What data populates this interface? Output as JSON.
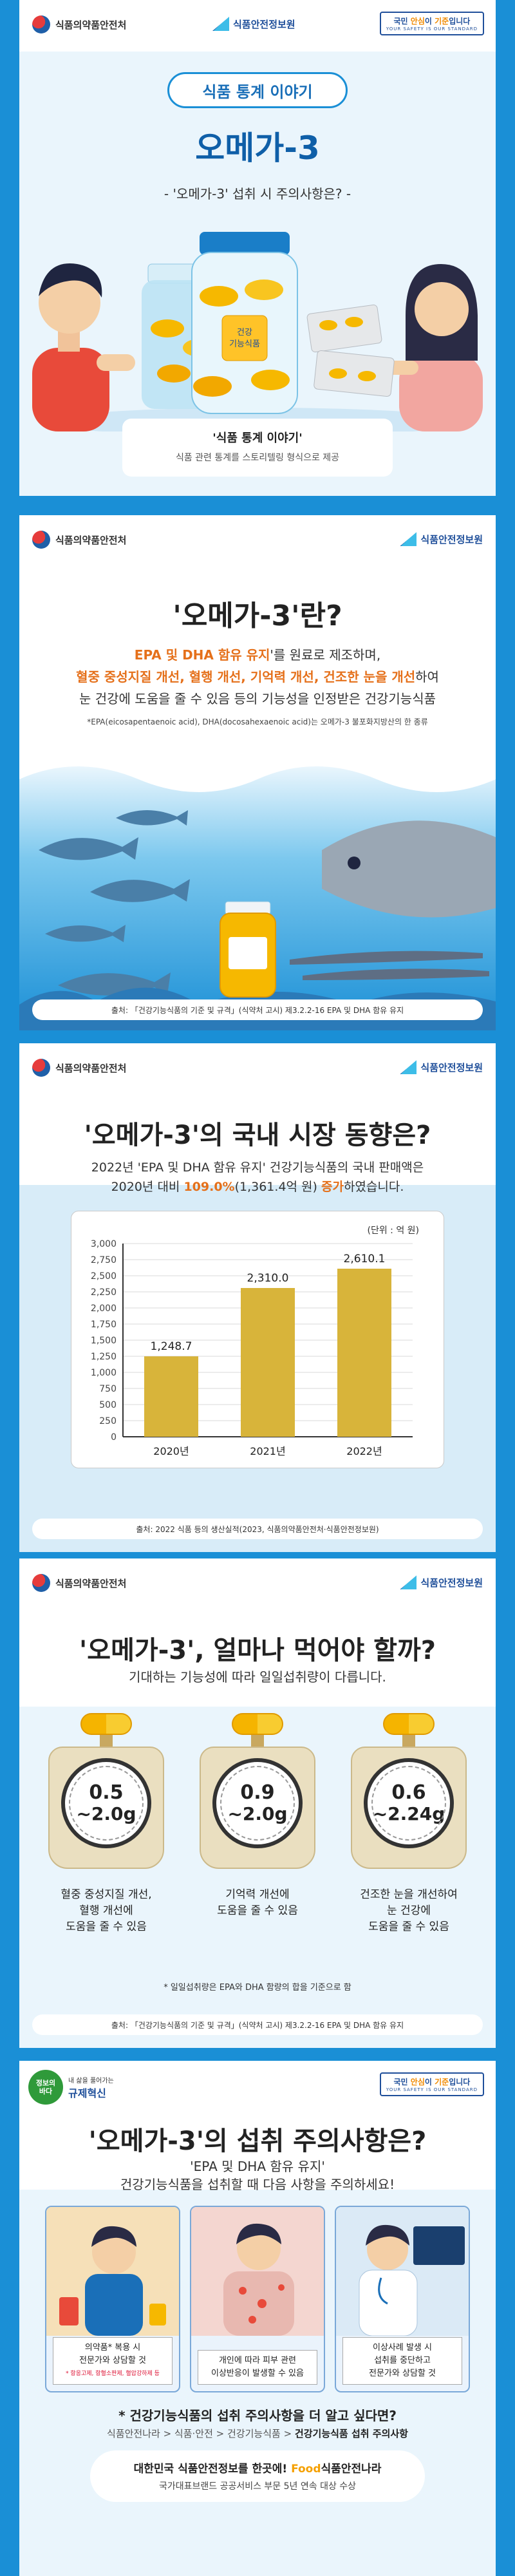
{
  "logos": {
    "mfds": "식품의약품안전처",
    "nifds": "식품안전정보원",
    "slogan_prefix": "국민 ",
    "slogan_hl1": "안심",
    "slogan_mid": "이 ",
    "slogan_hl2": "기준",
    "slogan_suffix": "입니다",
    "slogan_en": "YOUR SAFETY IS OUR STANDARD"
  },
  "panel1": {
    "pill": "식품 통계 이야기",
    "title": "오메가-3",
    "subtitle": "- '오메가-3' 섭취 시 주의사항은? -",
    "bottle_label_1": "건강",
    "bottle_label_2": "기능식품",
    "caption_title": "'식품 통계 이야기'",
    "caption_desc": "식품 관련 통계를 스토리텔링 형식으로 제공"
  },
  "panel2": {
    "title": "'오메가-3'란?",
    "line1_hl": "EPA 및 DHA 함유 유지",
    "line1_rest": "'를 원료로 제조하며,",
    "line2_a": "혈중 중성지질 개선, 혈행 개선, 기억력 개선, 건조한 눈을 개선",
    "line2_b": "하여",
    "line3": "눈 건강에 도움을 줄 수 있음 등의 기능성을 인정받은 건강기능식품",
    "note": "*EPA(eicosapentaenoic acid), DHA(docosahexaenoic acid)는 오메가-3 불포화지방산의 한 종류",
    "source": "출처: 「건강기능식품의 기준 및 규격」(식약처 고시) 제3.2.2-16 EPA 및 DHA 함유 유지"
  },
  "panel3": {
    "title": "'오메가-3'의 국내 시장 동향은?",
    "desc_line1": "2022년 'EPA 및 DHA 함유 유지' 건강기능식품의 국내 판매액은",
    "desc_line2_a": "2020년 대비 ",
    "desc_line2_hl1": "109.0%",
    "desc_line2_b": "(1,361.4억 원) ",
    "desc_line2_hl2": "증가",
    "desc_line2_c": "하였습니다.",
    "unit": "(단위 : 억 원)",
    "source": "출처: 2022 식품 등의 생산실적(2023, 식품의약품안전처·식품안전정보원)"
  },
  "chart_data": {
    "type": "bar",
    "title": "",
    "xlabel": "",
    "ylabel": "",
    "unit": "억 원",
    "categories": [
      "2020년",
      "2021년",
      "2022년"
    ],
    "values": [
      1248.7,
      2310.0,
      2610.1
    ],
    "value_labels": [
      "1,248.7",
      "2,310.0",
      "2,610.1"
    ],
    "ylim": [
      0,
      3000
    ],
    "yticks": [
      0,
      250,
      500,
      750,
      1000,
      1250,
      1500,
      1750,
      2000,
      2250,
      2500,
      2750,
      3000
    ],
    "ytick_labels": [
      "0",
      "250",
      "500",
      "750",
      "1,000",
      "1,250",
      "1,500",
      "1,750",
      "2,000",
      "2,250",
      "2,500",
      "2,750",
      "3,000"
    ],
    "bar_color": "#d8b43a",
    "grid": true
  },
  "panel4": {
    "title": "'오메가-3', 얼마나 먹어야 할까?",
    "subtitle": "기대하는 기능성에 따라 일일섭취량이 다릅니다.",
    "scales": [
      {
        "v1": "0.5",
        "v2": "~2.0g",
        "label_1": "혈중 중성지질 개선,",
        "label_2": "혈행 개선에",
        "label_3": "도움을 줄 수 있음"
      },
      {
        "v1": "0.9",
        "v2": "~2.0g",
        "label_1": "기억력 개선에",
        "label_2": "도움을 줄 수 있음",
        "label_3": ""
      },
      {
        "v1": "0.6",
        "v2": "~2.24g",
        "label_1": "건조한 눈을 개선하여",
        "label_2": "눈 건강에",
        "label_3": "도움을 줄 수 있음"
      }
    ],
    "note": "* 일일섭취량은 EPA와 DHA 함량의 합을 기준으로 함",
    "source": "출처: 「건강기능식품의 기준 및 규격」(식약처 고시) 제3.2.2-16 EPA 및 DHA 함유 유지"
  },
  "panel5": {
    "badge_circle_1": "정보의",
    "badge_circle_2": "바다",
    "badge_top": "내 삶을 풀어가는",
    "badge_main": "규제혁신",
    "title": "'오메가-3'의 섭취 주의사항은?",
    "sub1": "'EPA 및 DHA 함유 유지'",
    "sub2": "건강기능식품을 섭취할 때 다음 사항을 주의하세요!",
    "cards": [
      {
        "line1": "의약품* 복용 시",
        "line2": "전문가와 상담할 것",
        "small": "* 항응고제, 항혈소판제, 혈압강하제 등"
      },
      {
        "line1": "개인에 따라 피부 관련",
        "line2": "이상반응이 발생할 수 있음",
        "small": ""
      },
      {
        "line1": "이상사례 발생 시",
        "line2": "섭취를 중단하고",
        "line3": "전문가와 상담할 것"
      }
    ],
    "more_q": "* 건강기능식품의 섭취 주의사항을 더 알고 싶다면?",
    "path_a": "식품안전나라 > 식품·안전 > 건강기능식품 > ",
    "path_b": "건강기능식품 섭취 주의사항",
    "bottom_a": "대한민국 식품안전정보를 한곳에! ",
    "bottom_food": "Food",
    "bottom_b": "식품안전나라",
    "bottom_line2": "국가대표브랜드 공공서비스 부문 5년 연속 대상 수상"
  }
}
